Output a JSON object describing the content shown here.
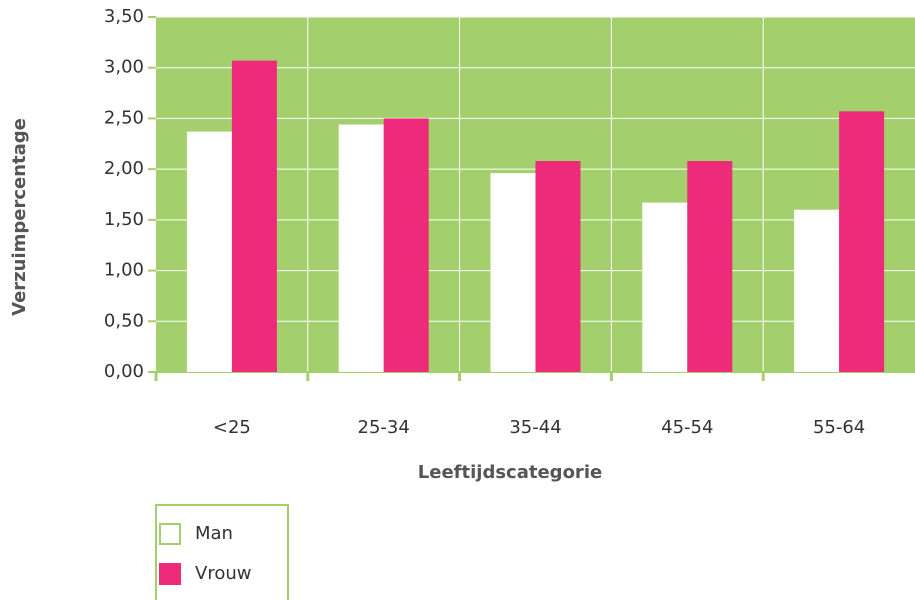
{
  "chart_data": {
    "type": "bar",
    "x_label": "Leeftijdscategorie",
    "y_label": "Verzuimpercentage",
    "categories": [
      "<25",
      "25-34",
      "35-44",
      "45-54",
      "55-64"
    ],
    "series": [
      {
        "name": "Man",
        "color": "#ffffff",
        "values": [
          2.37,
          2.44,
          1.96,
          1.67,
          1.6
        ]
      },
      {
        "name": "Vrouw",
        "color": "#ee2a7b",
        "values": [
          3.07,
          2.5,
          2.08,
          2.08,
          2.57
        ]
      }
    ],
    "ylim": [
      0,
      3.5
    ],
    "yticks": [
      {
        "value": 0,
        "label": "0,00"
      },
      {
        "value": 0.5,
        "label": "0,50"
      },
      {
        "value": 1,
        "label": "1,00"
      },
      {
        "value": 1.5,
        "label": "1,50"
      },
      {
        "value": 2,
        "label": "2,00"
      },
      {
        "value": 2.5,
        "label": "2,50"
      },
      {
        "value": 3,
        "label": "3,00"
      },
      {
        "value": 3.5,
        "label": "3,50"
      }
    ],
    "grid": true,
    "background": "#a3d06c"
  }
}
